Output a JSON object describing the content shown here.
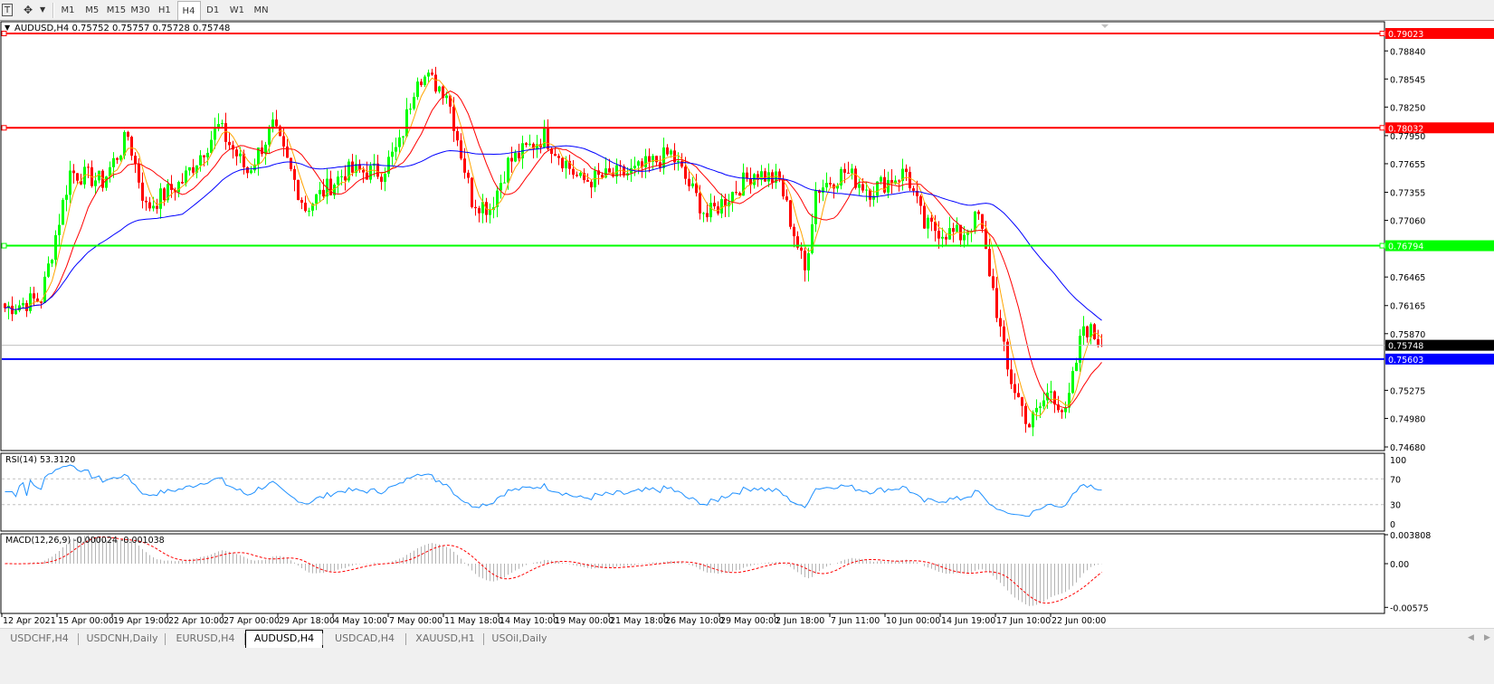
{
  "toolbar": {
    "text_tool_icon": "text-T-icon",
    "cursor_tool_icon": "crosshair-arrows-icon",
    "timeframes": [
      "M1",
      "M5",
      "M15",
      "M30",
      "H1",
      "H4",
      "D1",
      "W1",
      "MN"
    ],
    "active_timeframe": "H4"
  },
  "chart": {
    "header": "AUDUSD,H4  0.75752 0.75757 0.75728 0.75748",
    "symbol": "AUDUSD",
    "timeframe": "H4",
    "ohlc": {
      "open": 0.75752,
      "high": 0.75757,
      "low": 0.75728,
      "close": 0.75748
    },
    "colors": {
      "bull": "#00ff00",
      "bear": "#ff0000",
      "ma_fast": "#ffa500",
      "ma_mid": "#ff0000",
      "ma_slow": "#0000ff",
      "bid_line": "#c0c0c0"
    },
    "horizontal_lines": [
      {
        "label": "0.79023",
        "price": 0.79023,
        "color": "#ff0000"
      },
      {
        "label": "0.78032",
        "price": 0.78032,
        "color": "#ff0000"
      },
      {
        "label": "0.76794",
        "price": 0.76794,
        "color": "#00ff00"
      },
      {
        "label": "0.75603",
        "price": 0.75603,
        "color": "#0000ff"
      }
    ],
    "bid_label": "0.75748",
    "price_axis": [
      "0.78840",
      "0.78545",
      "0.78250",
      "0.77950",
      "0.77655",
      "0.77355",
      "0.77060",
      "0.76465",
      "0.76165",
      "0.75870",
      "0.75275",
      "0.74980",
      "0.74680"
    ],
    "time_axis": [
      "12 Apr 2021",
      "15 Apr 00:00",
      "19 Apr 19:00",
      "22 Apr 10:00",
      "27 Apr 00:00",
      "29 Apr 18:00",
      "4 May 10:00",
      "7 May 00:00",
      "11 May 18:00",
      "14 May 10:00",
      "19 May 00:00",
      "21 May 18:00",
      "26 May 10:00",
      "29 May 00:00",
      "2 Jun 18:00",
      "7 Jun 11:00",
      "10 Jun 00:00",
      "14 Jun 19:00",
      "17 Jun 10:00",
      "22 Jun 00:00"
    ],
    "approx_close_path": [
      [
        0,
        0.7614
      ],
      [
        10,
        0.7624
      ],
      [
        18,
        0.7757
      ],
      [
        27,
        0.7747
      ],
      [
        34,
        0.7795
      ],
      [
        39,
        0.7719
      ],
      [
        49,
        0.7747
      ],
      [
        59,
        0.7804
      ],
      [
        67,
        0.7757
      ],
      [
        74,
        0.7804
      ],
      [
        83,
        0.7719
      ],
      [
        94,
        0.7757
      ],
      [
        104,
        0.7757
      ],
      [
        109,
        0.7785
      ],
      [
        114,
        0.7861
      ],
      [
        122,
        0.7842
      ],
      [
        129,
        0.7728
      ],
      [
        134,
        0.7719
      ],
      [
        139,
        0.7766
      ],
      [
        149,
        0.7795
      ],
      [
        159,
        0.7747
      ],
      [
        174,
        0.7757
      ],
      [
        184,
        0.7776
      ],
      [
        194,
        0.771
      ],
      [
        199,
        0.7728
      ],
      [
        207,
        0.7757
      ],
      [
        214,
        0.7747
      ],
      [
        221,
        0.7652
      ],
      [
        224,
        0.7738
      ],
      [
        232,
        0.7757
      ],
      [
        239,
        0.7738
      ],
      [
        249,
        0.7757
      ],
      [
        254,
        0.77
      ],
      [
        264,
        0.769
      ],
      [
        269,
        0.771
      ],
      [
        273,
        0.7633
      ],
      [
        277,
        0.7547
      ],
      [
        283,
        0.7491
      ],
      [
        289,
        0.7529
      ],
      [
        293,
        0.75
      ],
      [
        298,
        0.7596
      ],
      [
        303,
        0.7577
      ]
    ]
  },
  "rsi": {
    "title": "RSI(14) 53.3120",
    "levels": [
      "100",
      "70",
      "30",
      "0"
    ]
  },
  "macd": {
    "title": "MACD(12,26,9) -0.000024 -0.001038",
    "levels": [
      "0.003808",
      "0.00",
      "-0.00575"
    ]
  },
  "tabs": [
    "USDCHF,H4",
    "USDCNH,Daily",
    "EURUSD,H4",
    "AUDUSD,H4",
    "USDCAD,H4",
    "XAUUSD,H1",
    "USOil,Daily"
  ],
  "active_tab": "AUDUSD,H4"
}
